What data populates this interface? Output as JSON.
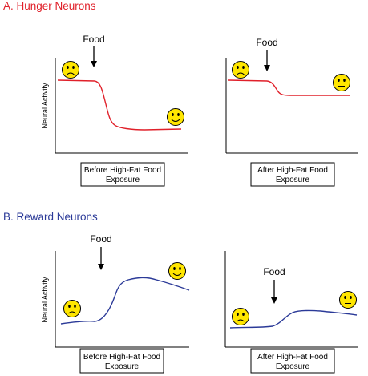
{
  "sections": [
    {
      "title": "A. Hunger Neurons",
      "color": "#e0202a",
      "ylabel": "Neural Activity",
      "panels": [
        {
          "food_label": "Food",
          "caption_line1": "Before High-Fat Food",
          "caption_line2": "Exposure",
          "start_face": "sad-face-icon",
          "end_face": "happy-face-icon"
        },
        {
          "food_label": "Food",
          "caption_line1": "After High-Fat Food",
          "caption_line2": "Exposure",
          "start_face": "sad-face-icon",
          "end_face": "neutral-face-icon"
        }
      ]
    },
    {
      "title": "B. Reward Neurons",
      "color": "#2b3a98",
      "ylabel": "Neural Activity",
      "panels": [
        {
          "food_label": "Food",
          "caption_line1": "Before High-Fat Food",
          "caption_line2": "Exposure",
          "start_face": "sad-face-icon",
          "end_face": "happy-face-icon"
        },
        {
          "food_label": "Food",
          "caption_line1": "After High-Fat Food",
          "caption_line2": "Exposure",
          "start_face": "sad-face-icon",
          "end_face": "neutral-face-icon"
        }
      ]
    }
  ],
  "face_color": "#ffe600"
}
